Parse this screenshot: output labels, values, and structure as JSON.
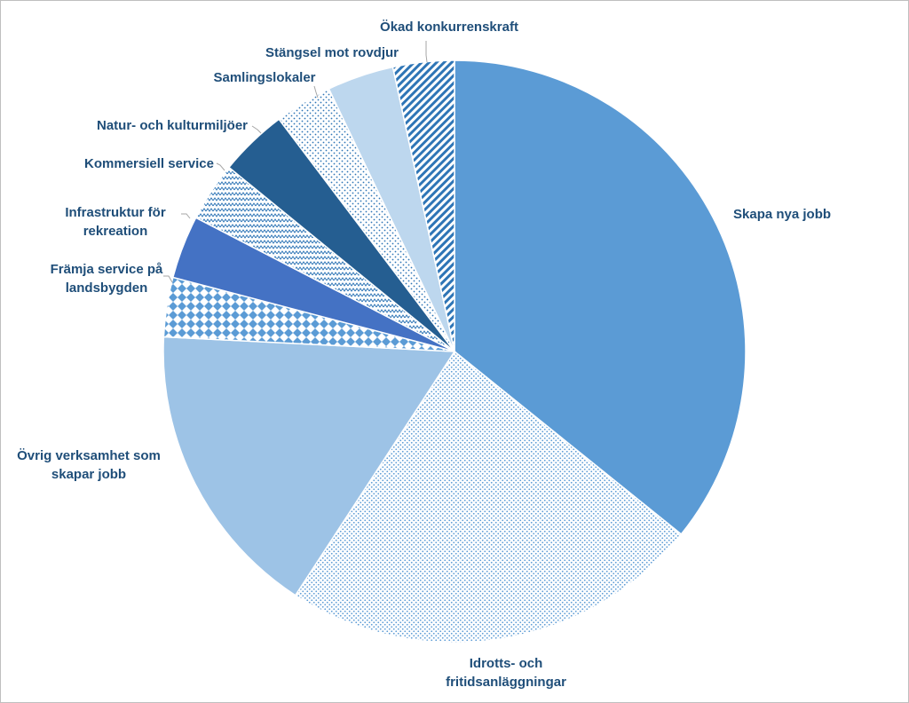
{
  "chart_data": {
    "type": "pie",
    "title": "",
    "start_angle_deg": 0,
    "direction": "clockwise",
    "slices": [
      {
        "label": "Skapa nya jobb",
        "value": 35.8,
        "color": "#5b9bd5",
        "pattern": "solid"
      },
      {
        "label": "Idrotts- och fritidsanläggningar",
        "value": 23.4,
        "color": "#5b9bd5",
        "pattern": "dots-fine"
      },
      {
        "label": "Övrig verksamhet som skapar jobb",
        "value": 16.6,
        "color": "#9dc3e6",
        "pattern": "solid"
      },
      {
        "label": "Främja service på landsbygden",
        "value": 3.3,
        "color": "#5b9bd5",
        "pattern": "diamonds"
      },
      {
        "label": "Infrastruktur för rekreation",
        "value": 3.5,
        "color": "#4472c4",
        "pattern": "solid"
      },
      {
        "label": "Kommersiell service",
        "value": 3.3,
        "color": "#2e75b6",
        "pattern": "zigzag"
      },
      {
        "label": "Natur- och kulturmiljöer",
        "value": 3.8,
        "color": "#255e91",
        "pattern": "solid"
      },
      {
        "label": "Samlingslokaler",
        "value": 3.2,
        "color": "#5b9bd5",
        "pattern": "dots-sparse"
      },
      {
        "label": "Stängsel mot rovdjur",
        "value": 3.7,
        "color": "#bdd7ee",
        "pattern": "solid"
      },
      {
        "label": "Ökad konkurrenskraft",
        "value": 3.4,
        "color": "#2e75b6",
        "pattern": "diagonal-stripes"
      }
    ]
  },
  "labels": [
    {
      "lines": [
        "Skapa nya jobb"
      ]
    },
    {
      "lines": [
        "Idrotts- och",
        "fritidsanläggningar"
      ]
    },
    {
      "lines": [
        "Övrig verksamhet som",
        "skapar jobb"
      ]
    },
    {
      "lines": [
        "Främja service på",
        "landsbygden"
      ]
    },
    {
      "lines": [
        "Infrastruktur  för",
        "rekreation"
      ]
    },
    {
      "lines": [
        "Kommersiell service"
      ]
    },
    {
      "lines": [
        "Natur- och kulturmiljöer"
      ]
    },
    {
      "lines": [
        "Samlingslokaler"
      ]
    },
    {
      "lines": [
        "Stängsel mot rovdjur"
      ]
    },
    {
      "lines": [
        "Ökad konkurrenskraft"
      ]
    }
  ]
}
